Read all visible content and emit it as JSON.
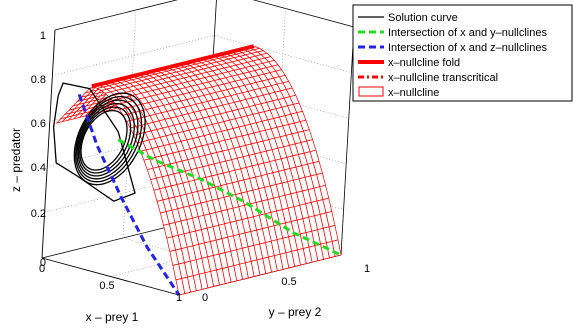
{
  "chart_data": {
    "type": "surface3d",
    "title": "",
    "xlabel": "x – prey 1",
    "ylabel": "y – prey 2",
    "zlabel": "z – predator",
    "xlim": [
      0,
      1
    ],
    "ylim": [
      0,
      1
    ],
    "zlim": [
      0,
      1
    ],
    "x_ticks": [
      "0",
      "0.5",
      "1"
    ],
    "y_ticks": [
      "0",
      "0.5",
      "1"
    ],
    "z_ticks": [
      "0",
      "0.2",
      "0.4",
      "0.6",
      "0.8",
      "1"
    ],
    "grid": true,
    "legend_position": "top-right",
    "legend": [
      {
        "label": "Solution curve",
        "style": "solid",
        "color": "#000000"
      },
      {
        "label": "Intersection of x and y–nullclines",
        "style": "dashed",
        "color": "#22dd22"
      },
      {
        "label": "Intersection of x and z–nullclines",
        "style": "dashed",
        "color": "#2222ee"
      },
      {
        "label": "x–nullcline fold",
        "style": "thick",
        "color": "#ff0000"
      },
      {
        "label": "x–nullcline transcritical",
        "style": "dashdot",
        "color": "#ff0000"
      },
      {
        "label": "x–nullcline",
        "style": "patch",
        "color": "#ff0000"
      }
    ],
    "surface": {
      "name": "x–nullcline",
      "fold_z": 0.8,
      "transcritical_z": 0.6,
      "edge_z_y0": 0,
      "edge_z_y1": 0
    },
    "series": [
      {
        "name": "Intersection of x and y–nullclines",
        "points": [
          [
            0.5,
            0.0,
            0.6
          ],
          [
            0.6,
            0.15,
            0.5
          ],
          [
            0.7,
            0.35,
            0.4
          ],
          [
            0.8,
            0.55,
            0.28
          ],
          [
            0.9,
            0.78,
            0.12
          ],
          [
            1.0,
            1.0,
            0.0
          ]
        ]
      },
      {
        "name": "Intersection of x and z–nullclines",
        "points": [
          [
            0.2,
            0.0,
            0.75
          ],
          [
            0.35,
            0.0,
            0.55
          ],
          [
            0.55,
            0.0,
            0.35
          ],
          [
            0.75,
            0.0,
            0.17
          ],
          [
            1.0,
            0.0,
            0.0
          ]
        ]
      }
    ]
  }
}
